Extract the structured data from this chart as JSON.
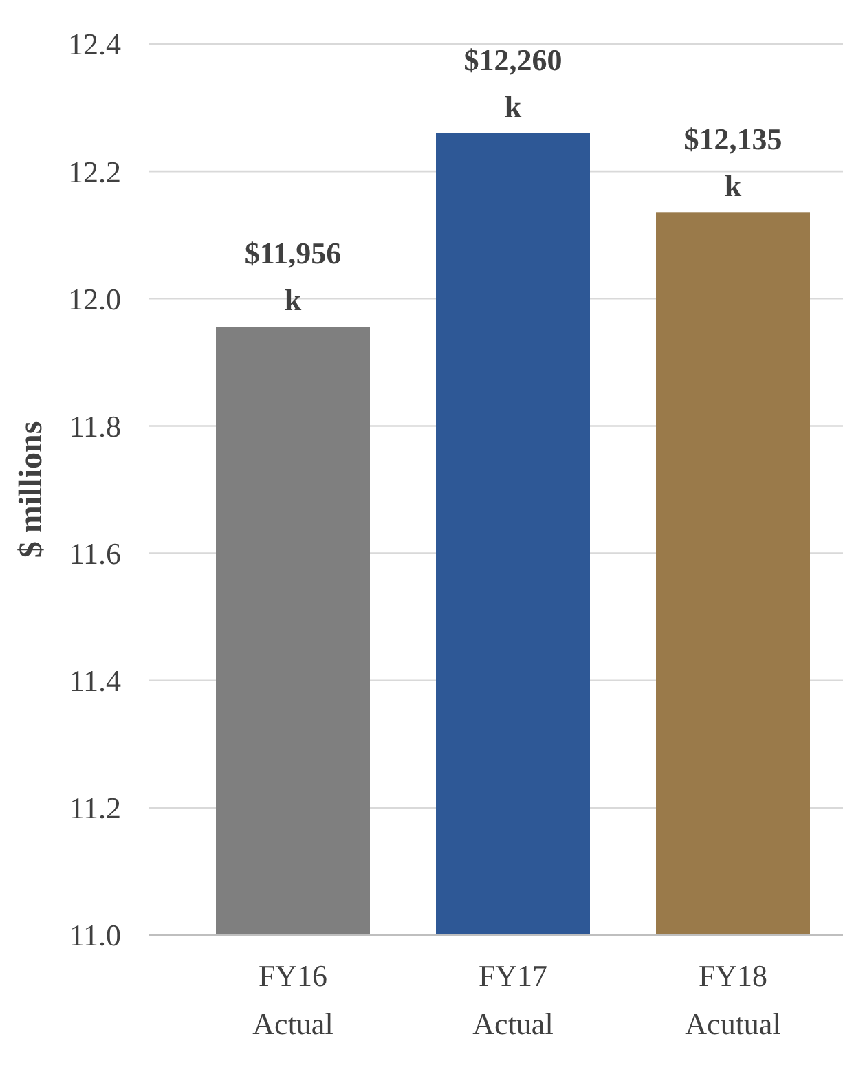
{
  "chart_data": {
    "type": "bar",
    "ylabel": "$ millions",
    "categories": [
      "FY16 Actual",
      "FY17 Actual",
      "FY18 Acutual"
    ],
    "values": [
      11.956,
      12.26,
      12.135
    ],
    "colors": [
      "#7f7f7f",
      "#2e5896",
      "#9a7a4a"
    ],
    "value_labels": [
      "$11,956 k",
      "$12,260 k",
      "$12,135 k"
    ],
    "ylim": [
      11.0,
      12.4
    ],
    "yticks": [
      {
        "value": 11.0,
        "label": "11.0"
      },
      {
        "value": 11.2,
        "label": "11.2"
      },
      {
        "value": 11.4,
        "label": "11.4"
      },
      {
        "value": 11.6,
        "label": "11.6"
      },
      {
        "value": 11.8,
        "label": "11.8"
      },
      {
        "value": 12.0,
        "label": "12.0"
      },
      {
        "value": 12.2,
        "label": "12.2"
      },
      {
        "value": 12.4,
        "label": "12.4"
      }
    ],
    "grid": "y"
  }
}
